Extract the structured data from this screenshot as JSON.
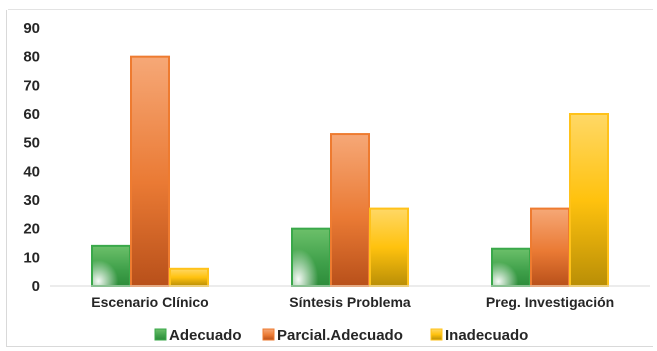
{
  "chart_data": {
    "type": "bar",
    "categories": [
      "Escenario Clínico",
      "Síntesis Problema",
      "Preg. Investigación"
    ],
    "series": [
      {
        "name": "Adecuado",
        "values": [
          14,
          20,
          13
        ]
      },
      {
        "name": "Parcial.Adecuado",
        "values": [
          80,
          53,
          27
        ]
      },
      {
        "name": "Inadecuado",
        "values": [
          6,
          27,
          60
        ]
      }
    ],
    "ylim": [
      0,
      90
    ],
    "yticks": [
      "0",
      "10",
      "20",
      "30",
      "40",
      "50",
      "60",
      "70",
      "80",
      "90"
    ],
    "grid": false,
    "legend_position": "bottom",
    "colors": {
      "Adecuado": "#3aa84a",
      "Parcial.Adecuado": "#ee7b30",
      "Inadecuado": "#ffc21a"
    }
  }
}
